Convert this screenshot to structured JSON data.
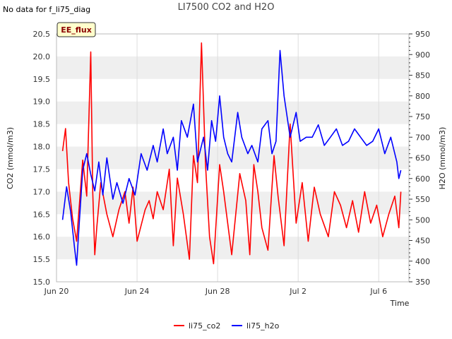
{
  "notice": "No data for f_li75_diag",
  "chart_data": {
    "type": "line",
    "title": "LI7500 CO2 and H2O",
    "site_badge": "EE_flux",
    "xlabel": "Time",
    "ylabel_left": "CO2 (mmol/m3)",
    "ylabel_right": "H2O (mmol/m3)",
    "x_ticks": [
      "Jun 20",
      "Jun 24",
      "Jun 28",
      "Jul 2",
      "Jul 6"
    ],
    "x_tick_days": [
      0,
      4,
      8,
      12,
      16
    ],
    "x_range_days": [
      0,
      17.5
    ],
    "left_ylim": [
      15.0,
      20.5
    ],
    "left_ticks": [
      "15.0",
      "15.5",
      "16.0",
      "16.5",
      "17.0",
      "17.5",
      "18.0",
      "18.5",
      "19.0",
      "19.5",
      "20.0",
      "20.5"
    ],
    "right_ylim": [
      350,
      950
    ],
    "right_ticks": [
      "350",
      "400",
      "450",
      "500",
      "550",
      "600",
      "650",
      "700",
      "750",
      "800",
      "850",
      "900",
      "950"
    ],
    "grid_bands": true,
    "legend_position": "bottom-center",
    "x_unit": "days since Jun 20",
    "series": [
      {
        "name": "li75_co2",
        "color": "#ff0000",
        "axis": "left",
        "x": [
          0.3,
          0.45,
          0.6,
          0.8,
          1.0,
          1.3,
          1.5,
          1.7,
          1.8,
          1.9,
          2.0,
          2.2,
          2.5,
          2.8,
          3.1,
          3.4,
          3.6,
          3.8,
          4.0,
          4.4,
          4.6,
          4.8,
          5.0,
          5.3,
          5.6,
          5.8,
          6.0,
          6.3,
          6.6,
          6.8,
          7.0,
          7.2,
          7.4,
          7.6,
          7.8,
          8.1,
          8.3,
          8.5,
          8.7,
          8.9,
          9.1,
          9.4,
          9.6,
          9.8,
          10.0,
          10.2,
          10.5,
          10.8,
          11.0,
          11.3,
          11.6,
          11.9,
          12.2,
          12.5,
          12.8,
          13.1,
          13.5,
          13.8,
          14.1,
          14.4,
          14.7,
          15.0,
          15.3,
          15.6,
          15.9,
          16.2,
          16.5,
          16.8,
          17.0,
          17.1
        ],
        "values": [
          17.9,
          18.4,
          17.2,
          16.4,
          15.9,
          17.7,
          16.9,
          20.1,
          17.0,
          15.6,
          16.2,
          17.2,
          16.5,
          16.0,
          16.6,
          17.0,
          16.3,
          17.1,
          15.9,
          16.6,
          16.8,
          16.4,
          17.0,
          16.6,
          17.5,
          15.8,
          17.3,
          16.5,
          15.5,
          17.8,
          17.2,
          20.3,
          17.6,
          16.0,
          15.4,
          17.6,
          17.0,
          16.3,
          15.6,
          16.5,
          17.4,
          16.8,
          15.6,
          17.6,
          17.0,
          16.2,
          15.7,
          17.8,
          16.9,
          15.8,
          18.5,
          16.3,
          17.2,
          15.9,
          17.1,
          16.5,
          16.0,
          17.0,
          16.7,
          16.2,
          16.8,
          16.1,
          17.0,
          16.3,
          16.7,
          16.0,
          16.5,
          16.9,
          16.2,
          17.0
        ]
      },
      {
        "name": "li75_h2o",
        "color": "#0000ff",
        "axis": "right",
        "x": [
          0.3,
          0.5,
          0.7,
          0.9,
          1.0,
          1.1,
          1.3,
          1.5,
          1.7,
          1.9,
          2.1,
          2.3,
          2.5,
          2.8,
          3.0,
          3.3,
          3.6,
          3.9,
          4.2,
          4.5,
          4.8,
          5.0,
          5.3,
          5.5,
          5.8,
          6.0,
          6.2,
          6.5,
          6.8,
          7.0,
          7.3,
          7.5,
          7.7,
          7.9,
          8.1,
          8.3,
          8.5,
          8.7,
          9.0,
          9.2,
          9.5,
          9.7,
          10.0,
          10.2,
          10.5,
          10.7,
          10.9,
          11.1,
          11.3,
          11.6,
          11.9,
          12.1,
          12.4,
          12.7,
          13.0,
          13.3,
          13.6,
          13.9,
          14.2,
          14.5,
          14.8,
          15.1,
          15.4,
          15.7,
          16.0,
          16.3,
          16.6,
          16.9,
          17.0,
          17.1
        ],
        "values": [
          500,
          580,
          520,
          430,
          390,
          470,
          620,
          660,
          610,
          570,
          640,
          560,
          650,
          550,
          590,
          540,
          600,
          560,
          660,
          620,
          680,
          640,
          720,
          660,
          700,
          620,
          740,
          700,
          780,
          640,
          700,
          620,
          740,
          690,
          800,
          700,
          660,
          640,
          760,
          700,
          660,
          680,
          640,
          720,
          740,
          660,
          690,
          910,
          800,
          700,
          760,
          690,
          700,
          700,
          730,
          680,
          700,
          720,
          680,
          690,
          720,
          700,
          680,
          690,
          720,
          660,
          700,
          640,
          600,
          620
        ]
      }
    ]
  }
}
